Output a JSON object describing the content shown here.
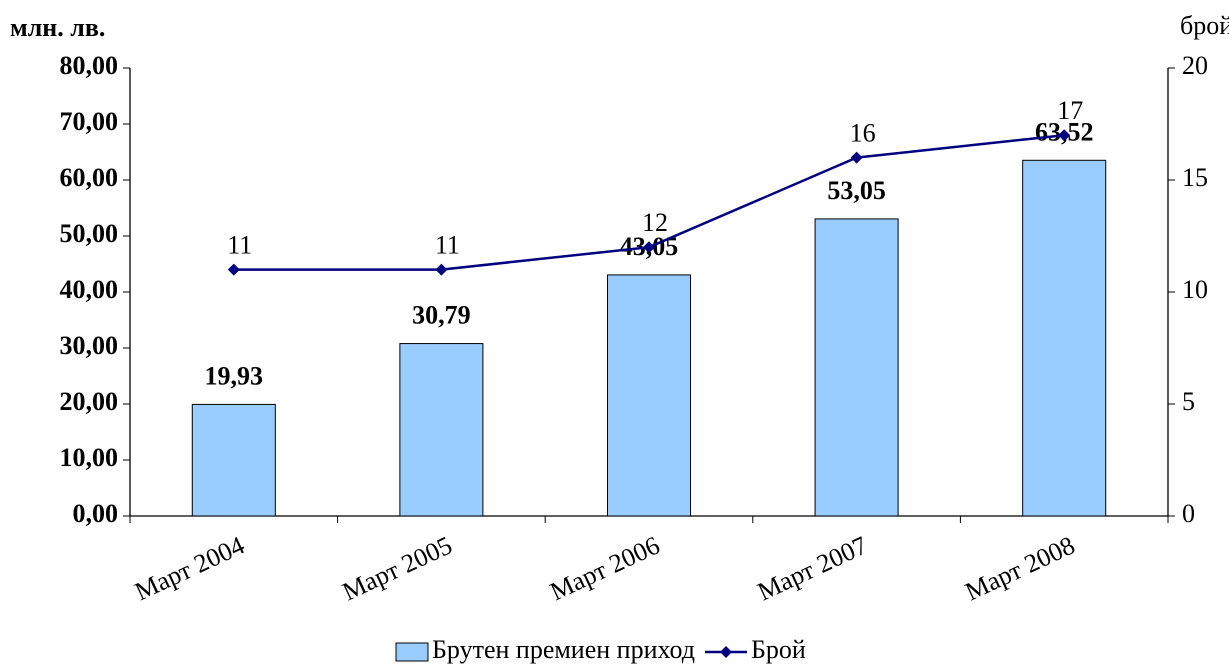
{
  "chart_data": {
    "type": "bar",
    "y_label": "млн. лв.",
    "y2_label": "брой",
    "categories": [
      "Март 2004",
      "Март 2005",
      "Март 2006",
      "Март 2007",
      "Март 2008"
    ],
    "series": [
      {
        "name": "Брутен премиен приход",
        "type": "bar",
        "color": "#99ccff",
        "values": [
          19.93,
          30.79,
          43.05,
          53.05,
          63.52
        ],
        "value_labels": [
          "19,93",
          "30,79",
          "43,05",
          "53,05",
          "63,52"
        ]
      },
      {
        "name": "Брой",
        "type": "line",
        "axis": "y2",
        "color": "#000080",
        "values": [
          11,
          11,
          12,
          16,
          17
        ]
      }
    ],
    "ylim": [
      0,
      80
    ],
    "yticks": [
      {
        "value": 0,
        "label": "0,00"
      },
      {
        "value": 10,
        "label": "10,00"
      },
      {
        "value": 20,
        "label": "20,00"
      },
      {
        "value": 30,
        "label": "30,00"
      },
      {
        "value": 40,
        "label": "40,00"
      },
      {
        "value": 50,
        "label": "50,00"
      },
      {
        "value": 60,
        "label": "60,00"
      },
      {
        "value": 70,
        "label": "70,00"
      },
      {
        "value": 80,
        "label": "80,00"
      }
    ],
    "y2lim": [
      0,
      20
    ],
    "y2ticks": [
      0,
      5,
      10,
      15,
      20
    ],
    "legend": "bottom"
  }
}
